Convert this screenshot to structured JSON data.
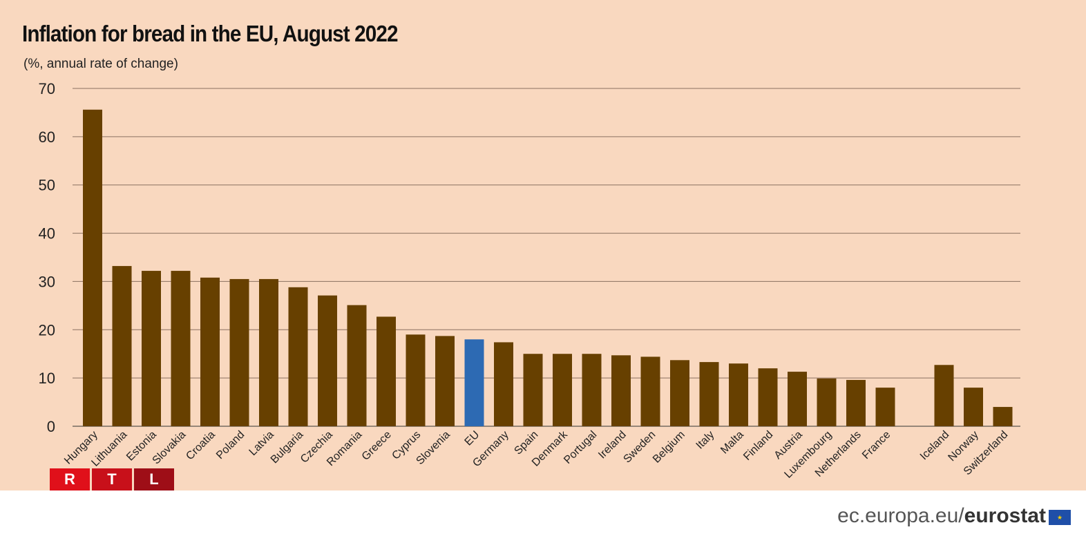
{
  "chart_data": {
    "type": "bar",
    "title": "Inflation for bread in the EU, August 2022",
    "subtitle": "(%, annual rate of change)",
    "ylim": [
      0,
      70
    ],
    "yticks": [
      "0",
      "10",
      "20",
      "30",
      "40",
      "50",
      "60",
      "70"
    ],
    "grid": true,
    "categories": [
      "Hungary",
      "Lithuania",
      "Estonia",
      "Slovakia",
      "Croatia",
      "Poland",
      "Latvia",
      "Bulgaria",
      "Czechia",
      "Romania",
      "Greece",
      "Cyprus",
      "Slovenia",
      "EU",
      "Germany",
      "Spain",
      "Denmark",
      "Portugal",
      "Ireland",
      "Sweden",
      "Belgium",
      "Italy",
      "Malta",
      "Finland",
      "Austria",
      "Luxembourg",
      "Netherlands",
      "France",
      "Iceland",
      "Norway",
      "Switzerland"
    ],
    "values": [
      65.6,
      33.2,
      32.2,
      32.2,
      30.8,
      30.5,
      30.5,
      28.8,
      27.1,
      25.1,
      22.7,
      19.0,
      18.7,
      18.0,
      17.4,
      15.0,
      15.0,
      15.0,
      14.7,
      14.4,
      13.7,
      13.3,
      13.0,
      12.0,
      11.3,
      9.9,
      9.6,
      8.0,
      12.7,
      8.0,
      4.0
    ],
    "highlight": "EU",
    "colors": {
      "bar": "#674000",
      "highlight": "#2d6ab3"
    }
  },
  "logo": {
    "letters": [
      "R",
      "T",
      "L"
    ],
    "colors": [
      "#e0101a",
      "#c8101a",
      "#9e0e17"
    ]
  },
  "footer": {
    "site": "ec.europa.eu/",
    "brand": "eurostat"
  }
}
